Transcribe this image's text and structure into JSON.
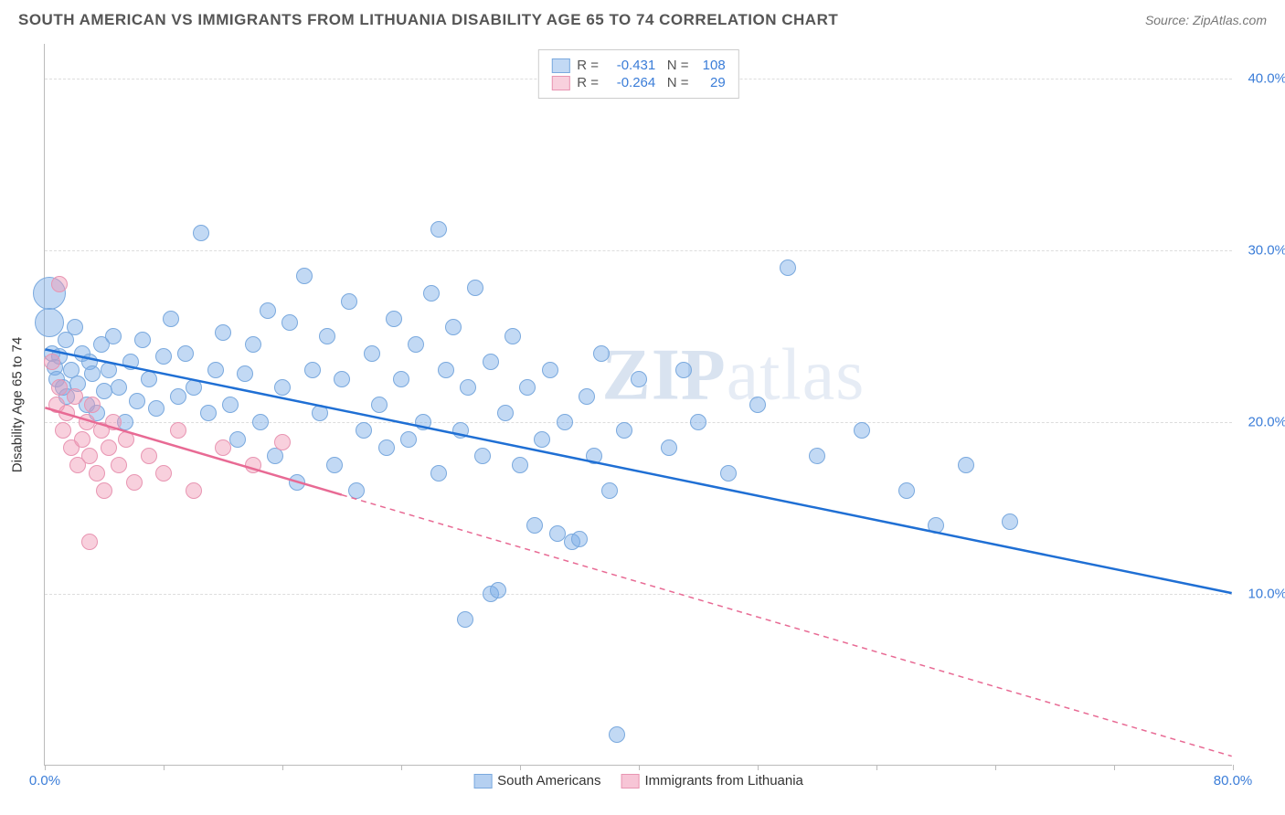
{
  "header": {
    "title": "SOUTH AMERICAN VS IMMIGRANTS FROM LITHUANIA DISABILITY AGE 65 TO 74 CORRELATION CHART",
    "source": "Source: ZipAtlas.com"
  },
  "chart": {
    "type": "scatter",
    "ylabel": "Disability Age 65 to 74",
    "watermark": "ZIPatlas",
    "background_color": "#ffffff",
    "grid_color": "#dddddd",
    "axis_color": "#bbbbbb",
    "xlim": [
      0,
      80
    ],
    "ylim": [
      0,
      42
    ],
    "xticks": [
      {
        "v": 0,
        "label": "0.0%",
        "color": "#3b7dd8"
      },
      {
        "v": 80,
        "label": "80.0%",
        "color": "#3b7dd8"
      }
    ],
    "xtick_marks": [
      0,
      8,
      16,
      24,
      32,
      40,
      48,
      56,
      64,
      72,
      80
    ],
    "yticks": [
      {
        "v": 10,
        "label": "10.0%",
        "color": "#3b7dd8"
      },
      {
        "v": 20,
        "label": "20.0%",
        "color": "#3b7dd8"
      },
      {
        "v": 30,
        "label": "30.0%",
        "color": "#3b7dd8"
      },
      {
        "v": 40,
        "label": "40.0%",
        "color": "#3b7dd8"
      }
    ],
    "series": [
      {
        "name": "South Americans",
        "fill_color": "rgba(120,170,230,0.45)",
        "stroke_color": "#7aa9de",
        "line_color": "#1f6fd4",
        "R": "-0.431",
        "N": "108",
        "trend": {
          "x1": 0,
          "y1": 24.2,
          "x2": 80,
          "y2": 10.0,
          "solid_until_x": 80
        },
        "default_r": 9,
        "points": [
          {
            "x": 0.3,
            "y": 27.5,
            "r": 18
          },
          {
            "x": 0.3,
            "y": 25.8,
            "r": 16
          },
          {
            "x": 0.5,
            "y": 24.0
          },
          {
            "x": 0.7,
            "y": 23.2
          },
          {
            "x": 0.8,
            "y": 22.5
          },
          {
            "x": 1.0,
            "y": 23.8
          },
          {
            "x": 1.2,
            "y": 22.0
          },
          {
            "x": 1.4,
            "y": 24.8
          },
          {
            "x": 1.5,
            "y": 21.5
          },
          {
            "x": 1.8,
            "y": 23.0
          },
          {
            "x": 2.0,
            "y": 25.5
          },
          {
            "x": 2.2,
            "y": 22.2
          },
          {
            "x": 2.5,
            "y": 24.0
          },
          {
            "x": 2.8,
            "y": 21.0
          },
          {
            "x": 3.0,
            "y": 23.5
          },
          {
            "x": 3.2,
            "y": 22.8
          },
          {
            "x": 3.5,
            "y": 20.5
          },
          {
            "x": 3.8,
            "y": 24.5
          },
          {
            "x": 4.0,
            "y": 21.8
          },
          {
            "x": 4.3,
            "y": 23.0
          },
          {
            "x": 4.6,
            "y": 25.0
          },
          {
            "x": 5.0,
            "y": 22.0
          },
          {
            "x": 5.4,
            "y": 20.0
          },
          {
            "x": 5.8,
            "y": 23.5
          },
          {
            "x": 6.2,
            "y": 21.2
          },
          {
            "x": 6.6,
            "y": 24.8
          },
          {
            "x": 7.0,
            "y": 22.5
          },
          {
            "x": 7.5,
            "y": 20.8
          },
          {
            "x": 8.0,
            "y": 23.8
          },
          {
            "x": 8.5,
            "y": 26.0
          },
          {
            "x": 9.0,
            "y": 21.5
          },
          {
            "x": 9.5,
            "y": 24.0
          },
          {
            "x": 10.0,
            "y": 22.0
          },
          {
            "x": 10.5,
            "y": 31.0
          },
          {
            "x": 11.0,
            "y": 20.5
          },
          {
            "x": 11.5,
            "y": 23.0
          },
          {
            "x": 12.0,
            "y": 25.2
          },
          {
            "x": 12.5,
            "y": 21.0
          },
          {
            "x": 13.0,
            "y": 19.0
          },
          {
            "x": 13.5,
            "y": 22.8
          },
          {
            "x": 14.0,
            "y": 24.5
          },
          {
            "x": 14.5,
            "y": 20.0
          },
          {
            "x": 15.0,
            "y": 26.5
          },
          {
            "x": 15.5,
            "y": 18.0
          },
          {
            "x": 16.0,
            "y": 22.0
          },
          {
            "x": 16.5,
            "y": 25.8
          },
          {
            "x": 17.0,
            "y": 16.5
          },
          {
            "x": 17.5,
            "y": 28.5
          },
          {
            "x": 18.0,
            "y": 23.0
          },
          {
            "x": 18.5,
            "y": 20.5
          },
          {
            "x": 19.0,
            "y": 25.0
          },
          {
            "x": 19.5,
            "y": 17.5
          },
          {
            "x": 20.0,
            "y": 22.5
          },
          {
            "x": 20.5,
            "y": 27.0
          },
          {
            "x": 21.0,
            "y": 16.0
          },
          {
            "x": 21.5,
            "y": 19.5
          },
          {
            "x": 22.0,
            "y": 24.0
          },
          {
            "x": 22.5,
            "y": 21.0
          },
          {
            "x": 23.0,
            "y": 18.5
          },
          {
            "x": 23.5,
            "y": 26.0
          },
          {
            "x": 24.0,
            "y": 22.5
          },
          {
            "x": 24.5,
            "y": 19.0
          },
          {
            "x": 25.0,
            "y": 24.5
          },
          {
            "x": 25.5,
            "y": 20.0
          },
          {
            "x": 26.0,
            "y": 27.5
          },
          {
            "x": 26.5,
            "y": 17.0
          },
          {
            "x": 26.5,
            "y": 31.2
          },
          {
            "x": 27.0,
            "y": 23.0
          },
          {
            "x": 27.5,
            "y": 25.5
          },
          {
            "x": 28.0,
            "y": 19.5
          },
          {
            "x": 28.3,
            "y": 8.5
          },
          {
            "x": 28.5,
            "y": 22.0
          },
          {
            "x": 29.0,
            "y": 27.8
          },
          {
            "x": 29.5,
            "y": 18.0
          },
          {
            "x": 30.0,
            "y": 23.5
          },
          {
            "x": 30.0,
            "y": 10.0
          },
          {
            "x": 30.5,
            "y": 10.2
          },
          {
            "x": 31.0,
            "y": 20.5
          },
          {
            "x": 31.5,
            "y": 25.0
          },
          {
            "x": 32.0,
            "y": 17.5
          },
          {
            "x": 32.5,
            "y": 22.0
          },
          {
            "x": 33.0,
            "y": 14.0
          },
          {
            "x": 33.5,
            "y": 19.0
          },
          {
            "x": 34.0,
            "y": 23.0
          },
          {
            "x": 34.5,
            "y": 13.5
          },
          {
            "x": 35.0,
            "y": 20.0
          },
          {
            "x": 35.5,
            "y": 13.0
          },
          {
            "x": 36.0,
            "y": 13.2
          },
          {
            "x": 36.5,
            "y": 21.5
          },
          {
            "x": 37.0,
            "y": 18.0
          },
          {
            "x": 37.5,
            "y": 24.0
          },
          {
            "x": 38.0,
            "y": 16.0
          },
          {
            "x": 38.5,
            "y": 1.8
          },
          {
            "x": 39.0,
            "y": 19.5
          },
          {
            "x": 40.0,
            "y": 22.5
          },
          {
            "x": 42.0,
            "y": 18.5
          },
          {
            "x": 43.0,
            "y": 23.0
          },
          {
            "x": 44.0,
            "y": 20.0
          },
          {
            "x": 46.0,
            "y": 17.0
          },
          {
            "x": 48.0,
            "y": 21.0
          },
          {
            "x": 50.0,
            "y": 29.0
          },
          {
            "x": 52.0,
            "y": 18.0
          },
          {
            "x": 55.0,
            "y": 19.5
          },
          {
            "x": 58.0,
            "y": 16.0
          },
          {
            "x": 60.0,
            "y": 14.0
          },
          {
            "x": 62.0,
            "y": 17.5
          },
          {
            "x": 65.0,
            "y": 14.2
          }
        ]
      },
      {
        "name": "Immigrants from Lithuania",
        "fill_color": "rgba(240,150,180,0.45)",
        "stroke_color": "#e895b2",
        "line_color": "#e86a94",
        "R": "-0.264",
        "N": "29",
        "trend": {
          "x1": 0,
          "y1": 20.8,
          "x2": 80,
          "y2": 0.5,
          "solid_until_x": 20
        },
        "default_r": 9,
        "points": [
          {
            "x": 0.5,
            "y": 23.5
          },
          {
            "x": 0.8,
            "y": 21.0
          },
          {
            "x": 1.0,
            "y": 22.0
          },
          {
            "x": 1.2,
            "y": 19.5
          },
          {
            "x": 1.5,
            "y": 20.5
          },
          {
            "x": 1.8,
            "y": 18.5
          },
          {
            "x": 2.0,
            "y": 21.5
          },
          {
            "x": 2.2,
            "y": 17.5
          },
          {
            "x": 2.5,
            "y": 19.0
          },
          {
            "x": 2.8,
            "y": 20.0
          },
          {
            "x": 3.0,
            "y": 18.0
          },
          {
            "x": 3.2,
            "y": 21.0
          },
          {
            "x": 3.5,
            "y": 17.0
          },
          {
            "x": 3.8,
            "y": 19.5
          },
          {
            "x": 4.0,
            "y": 16.0
          },
          {
            "x": 4.3,
            "y": 18.5
          },
          {
            "x": 3.0,
            "y": 13.0
          },
          {
            "x": 4.6,
            "y": 20.0
          },
          {
            "x": 5.0,
            "y": 17.5
          },
          {
            "x": 5.5,
            "y": 19.0
          },
          {
            "x": 6.0,
            "y": 16.5
          },
          {
            "x": 7.0,
            "y": 18.0
          },
          {
            "x": 8.0,
            "y": 17.0
          },
          {
            "x": 9.0,
            "y": 19.5
          },
          {
            "x": 10.0,
            "y": 16.0
          },
          {
            "x": 12.0,
            "y": 18.5
          },
          {
            "x": 14.0,
            "y": 17.5
          },
          {
            "x": 16.0,
            "y": 18.8
          },
          {
            "x": 1.0,
            "y": 28.0
          }
        ]
      }
    ],
    "legend_top": {
      "r_label": "R =",
      "n_label": "N =",
      "value_color": "#3b7dd8",
      "text_color": "#555555"
    },
    "legend_bottom": [
      {
        "swatch_fill": "rgba(120,170,230,0.55)",
        "swatch_stroke": "#7aa9de",
        "label": "South Americans"
      },
      {
        "swatch_fill": "rgba(240,150,180,0.55)",
        "swatch_stroke": "#e895b2",
        "label": "Immigrants from Lithuania"
      }
    ]
  }
}
